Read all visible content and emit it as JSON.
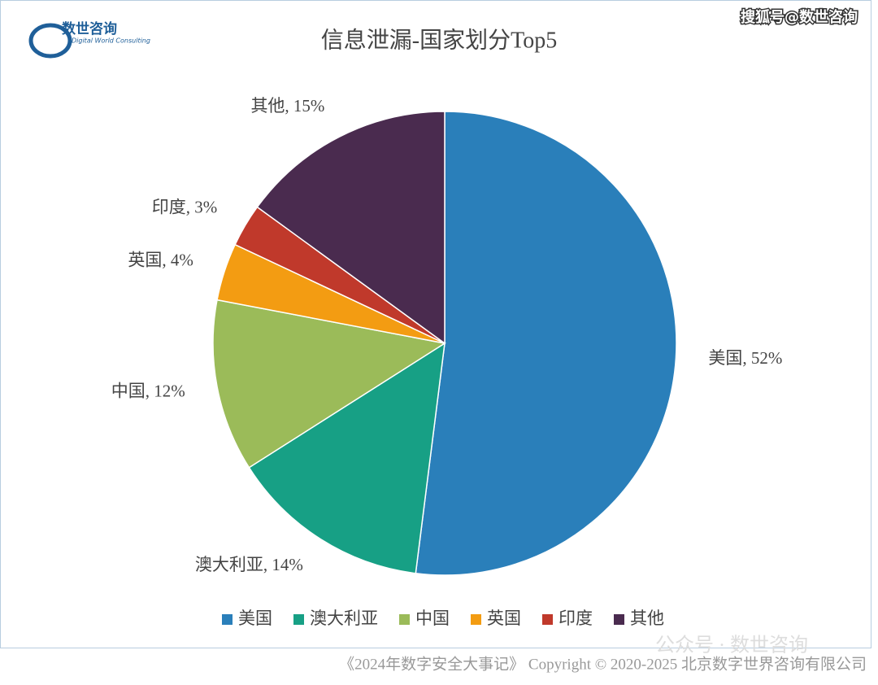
{
  "logo": {
    "name": "数世咨询",
    "subtitle": "Digital World Consulting"
  },
  "source_tag": "搜狐号@数世咨询",
  "watermark": "公众号 · 数世咨询",
  "footer": "《2024年数字安全大事记》 Copyright © 2020-2025 北京数字世界咨询有限公司",
  "chart_data": {
    "type": "pie",
    "title": "信息泄漏-国家划分Top5",
    "categories": [
      "美国",
      "澳大利亚",
      "中国",
      "英国",
      "印度",
      "其他"
    ],
    "values": [
      52,
      14,
      12,
      4,
      3,
      15
    ],
    "value_labels": [
      "美国, 52%",
      "澳大利亚, 14%",
      "中国, 12%",
      "英国, 4%",
      "印度, 3%",
      "其他, 15%"
    ],
    "colors": [
      "#2a7fba",
      "#17a085",
      "#9bbb59",
      "#f39c12",
      "#c0392b",
      "#4a2b4f"
    ],
    "legend": "bottom"
  }
}
